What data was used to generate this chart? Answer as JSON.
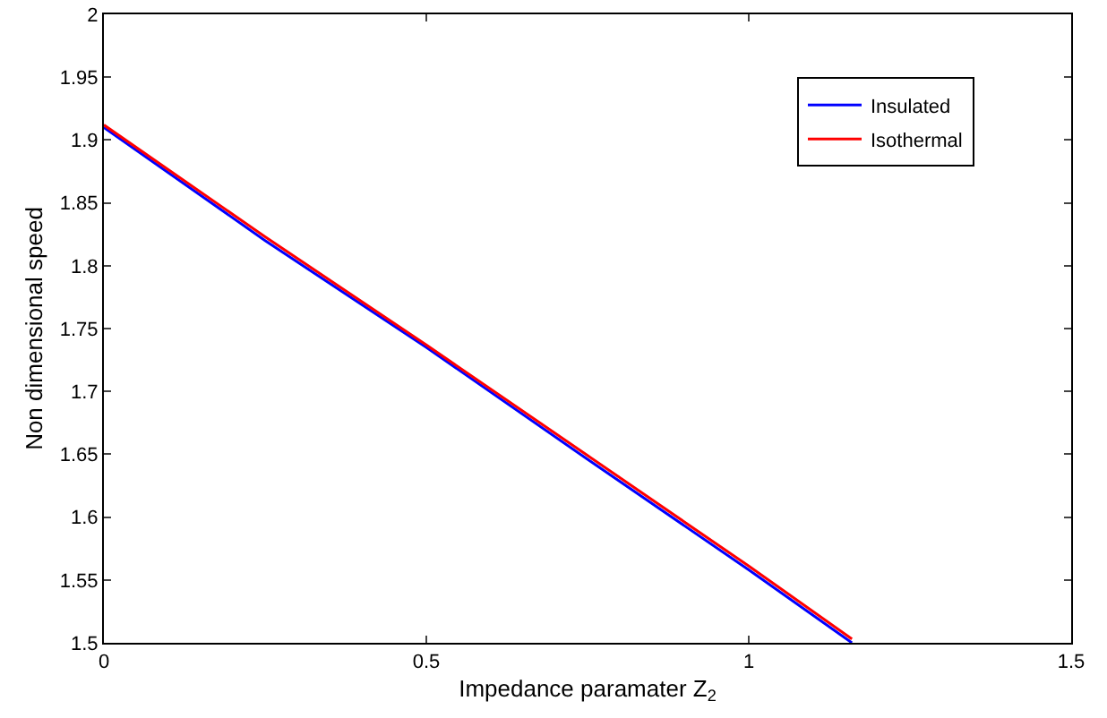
{
  "chart_data": {
    "type": "line",
    "xlabel": "Impedance paramater Z$_{2}$",
    "ylabel": "Non dimensional speed",
    "x": [
      0,
      0.25,
      0.5,
      0.75,
      1,
      1.16
    ],
    "series": [
      {
        "name": "Insulated",
        "color": "#0000ff",
        "values": [
          1.91,
          1.82,
          1.735,
          1.646,
          1.558,
          1.5
        ]
      },
      {
        "name": "Isothermal",
        "color": "#ff0000",
        "values": [
          1.912,
          1.823,
          1.737,
          1.649,
          1.561,
          1.503
        ]
      }
    ],
    "xlim": [
      0,
      1.5
    ],
    "ylim": [
      1.5,
      2
    ],
    "xticks": [
      0,
      0.5,
      1,
      1.5
    ],
    "yticks": [
      1.5,
      1.55,
      1.6,
      1.65,
      1.7,
      1.75,
      1.8,
      1.85,
      1.9,
      1.95,
      2
    ],
    "grid": false,
    "legend": "top right",
    "marker": "none",
    "line_style": "solid"
  }
}
